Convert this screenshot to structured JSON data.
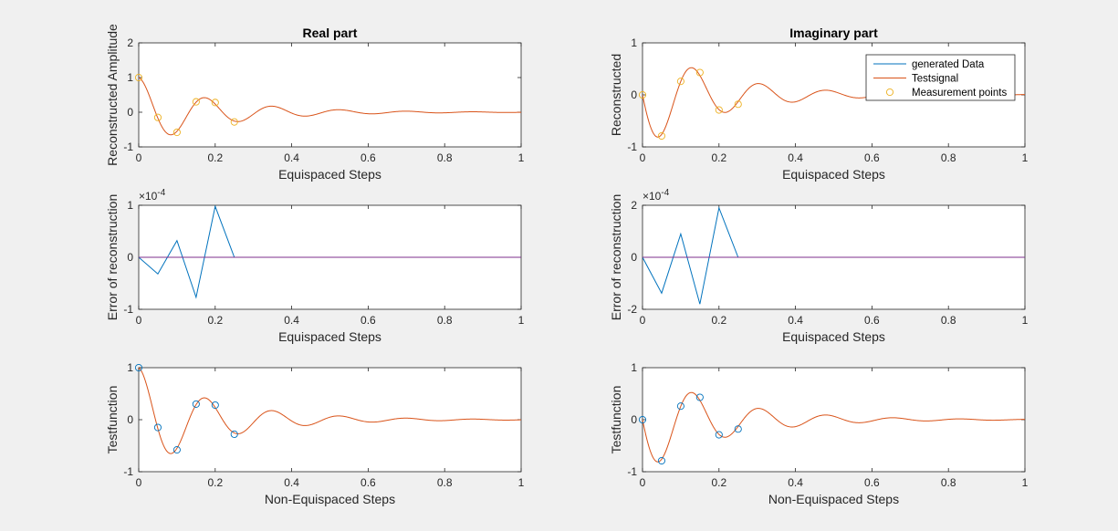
{
  "figure": {
    "background": "#f0f0f0",
    "colors": {
      "generated": "#0072bd",
      "testsignal": "#d95319",
      "measurement_real": "#edb120",
      "measurement_test": "#0072bd",
      "zero_line": "#7e2f8e"
    }
  },
  "legend": {
    "items": [
      {
        "label": "generated Data",
        "kind": "line",
        "color": "#0072bd"
      },
      {
        "label": "Testsignal",
        "kind": "line",
        "color": "#d95319"
      },
      {
        "label": "Measurement points",
        "kind": "marker",
        "color": "#edb120"
      }
    ],
    "placement": "top-right"
  },
  "chart_data": [
    {
      "type": "line",
      "title": "Real part",
      "xlabel": "Equispaced Steps",
      "ylabel": "Reconstructed Amplitude",
      "xlim": [
        0,
        1
      ],
      "ylim": [
        -1,
        2
      ],
      "xticks": [
        "0",
        "0.2",
        "0.4",
        "0.6",
        "0.8",
        "1"
      ],
      "yticks": [
        "-1",
        "0",
        "1",
        "2"
      ],
      "series": [
        {
          "role": "signal",
          "color": "#d95319",
          "function": "cos",
          "amplitude": 1,
          "decay": 5,
          "frequency_hz": 5.7
        },
        {
          "role": "markers",
          "color": "#edb120",
          "x": [
            0,
            0.05,
            0.1,
            0.15,
            0.2,
            0.25
          ],
          "y": [
            1.0,
            -0.15,
            -0.58,
            0.3,
            0.28,
            -0.28
          ]
        }
      ]
    },
    {
      "type": "line",
      "title": "Imaginary part",
      "xlabel": "Equispaced Steps",
      "ylabel": "Reconstructed",
      "xlim": [
        0,
        1
      ],
      "ylim": [
        -1,
        1
      ],
      "xticks": [
        "0",
        "0.2",
        "0.4",
        "0.6",
        "0.8",
        "1"
      ],
      "yticks": [
        "-1",
        "0",
        "1"
      ],
      "series": [
        {
          "role": "signal",
          "color": "#d95319",
          "function": "negsin",
          "amplitude": 1,
          "decay": 5,
          "frequency_hz": 5.7
        },
        {
          "role": "markers",
          "color": "#edb120",
          "x": [
            0,
            0.05,
            0.1,
            0.15,
            0.2,
            0.25
          ],
          "y": [
            0.0,
            -0.79,
            0.26,
            0.43,
            -0.29,
            -0.18
          ]
        }
      ]
    },
    {
      "type": "line",
      "title": "",
      "xlabel": "Equispaced Steps",
      "ylabel": "Error of reconstruction",
      "xlim": [
        0,
        1
      ],
      "ylim": [
        -1,
        1
      ],
      "xticks": [
        "0",
        "0.2",
        "0.4",
        "0.6",
        "0.8",
        "1"
      ],
      "yticks": [
        "-1",
        "0",
        "1"
      ],
      "exponent_label": "×10",
      "exponent_power": "-4",
      "series": [
        {
          "role": "error",
          "color": "#0072bd",
          "x": [
            0,
            0.05,
            0.1,
            0.15,
            0.2,
            0.25
          ],
          "y": [
            0.0,
            -0.32,
            0.32,
            -0.77,
            0.98,
            0.0
          ]
        },
        {
          "role": "zero",
          "color": "#7e2f8e",
          "x": [
            0,
            1
          ],
          "y": [
            0,
            0
          ]
        }
      ]
    },
    {
      "type": "line",
      "title": "",
      "xlabel": "Equispaced Steps",
      "ylabel": "Error of reconstruction",
      "xlim": [
        0,
        1
      ],
      "ylim": [
        -2,
        2
      ],
      "xticks": [
        "0",
        "0.2",
        "0.4",
        "0.6",
        "0.8",
        "1"
      ],
      "yticks": [
        "-2",
        "0",
        "2"
      ],
      "exponent_label": "×10",
      "exponent_power": "-4",
      "series": [
        {
          "role": "error",
          "color": "#0072bd",
          "x": [
            0,
            0.05,
            0.1,
            0.15,
            0.2,
            0.25
          ],
          "y": [
            0.0,
            -1.38,
            0.9,
            -1.8,
            1.9,
            0.0
          ]
        },
        {
          "role": "zero",
          "color": "#7e2f8e",
          "x": [
            0,
            1
          ],
          "y": [
            0,
            0
          ]
        }
      ]
    },
    {
      "type": "line",
      "title": "",
      "xlabel": "Non-Equispaced Steps",
      "ylabel": "Testfunction",
      "xlim": [
        0,
        1
      ],
      "ylim": [
        -1,
        1
      ],
      "xticks": [
        "0",
        "0.2",
        "0.4",
        "0.6",
        "0.8",
        "1"
      ],
      "yticks": [
        "-1",
        "0",
        "1"
      ],
      "series": [
        {
          "role": "signal",
          "color": "#d95319",
          "function": "cos",
          "amplitude": 1,
          "decay": 5,
          "frequency_hz": 5.7
        },
        {
          "role": "markers",
          "color": "#0072bd",
          "x": [
            0,
            0.05,
            0.1,
            0.15,
            0.2,
            0.25
          ],
          "y": [
            1.0,
            -0.15,
            -0.58,
            0.3,
            0.28,
            -0.28
          ]
        }
      ]
    },
    {
      "type": "line",
      "title": "",
      "xlabel": "Non-Equispaced Steps",
      "ylabel": "Testfunction",
      "xlim": [
        0,
        1
      ],
      "ylim": [
        -1,
        1
      ],
      "xticks": [
        "0",
        "0.2",
        "0.4",
        "0.6",
        "0.8",
        "1"
      ],
      "yticks": [
        "-1",
        "0",
        "1"
      ],
      "series": [
        {
          "role": "signal",
          "color": "#d95319",
          "function": "negsin",
          "amplitude": 1,
          "decay": 5,
          "frequency_hz": 5.7
        },
        {
          "role": "markers",
          "color": "#0072bd",
          "x": [
            0,
            0.05,
            0.1,
            0.15,
            0.2,
            0.25
          ],
          "y": [
            0.0,
            -0.79,
            0.26,
            0.43,
            -0.29,
            -0.18
          ]
        }
      ]
    }
  ]
}
